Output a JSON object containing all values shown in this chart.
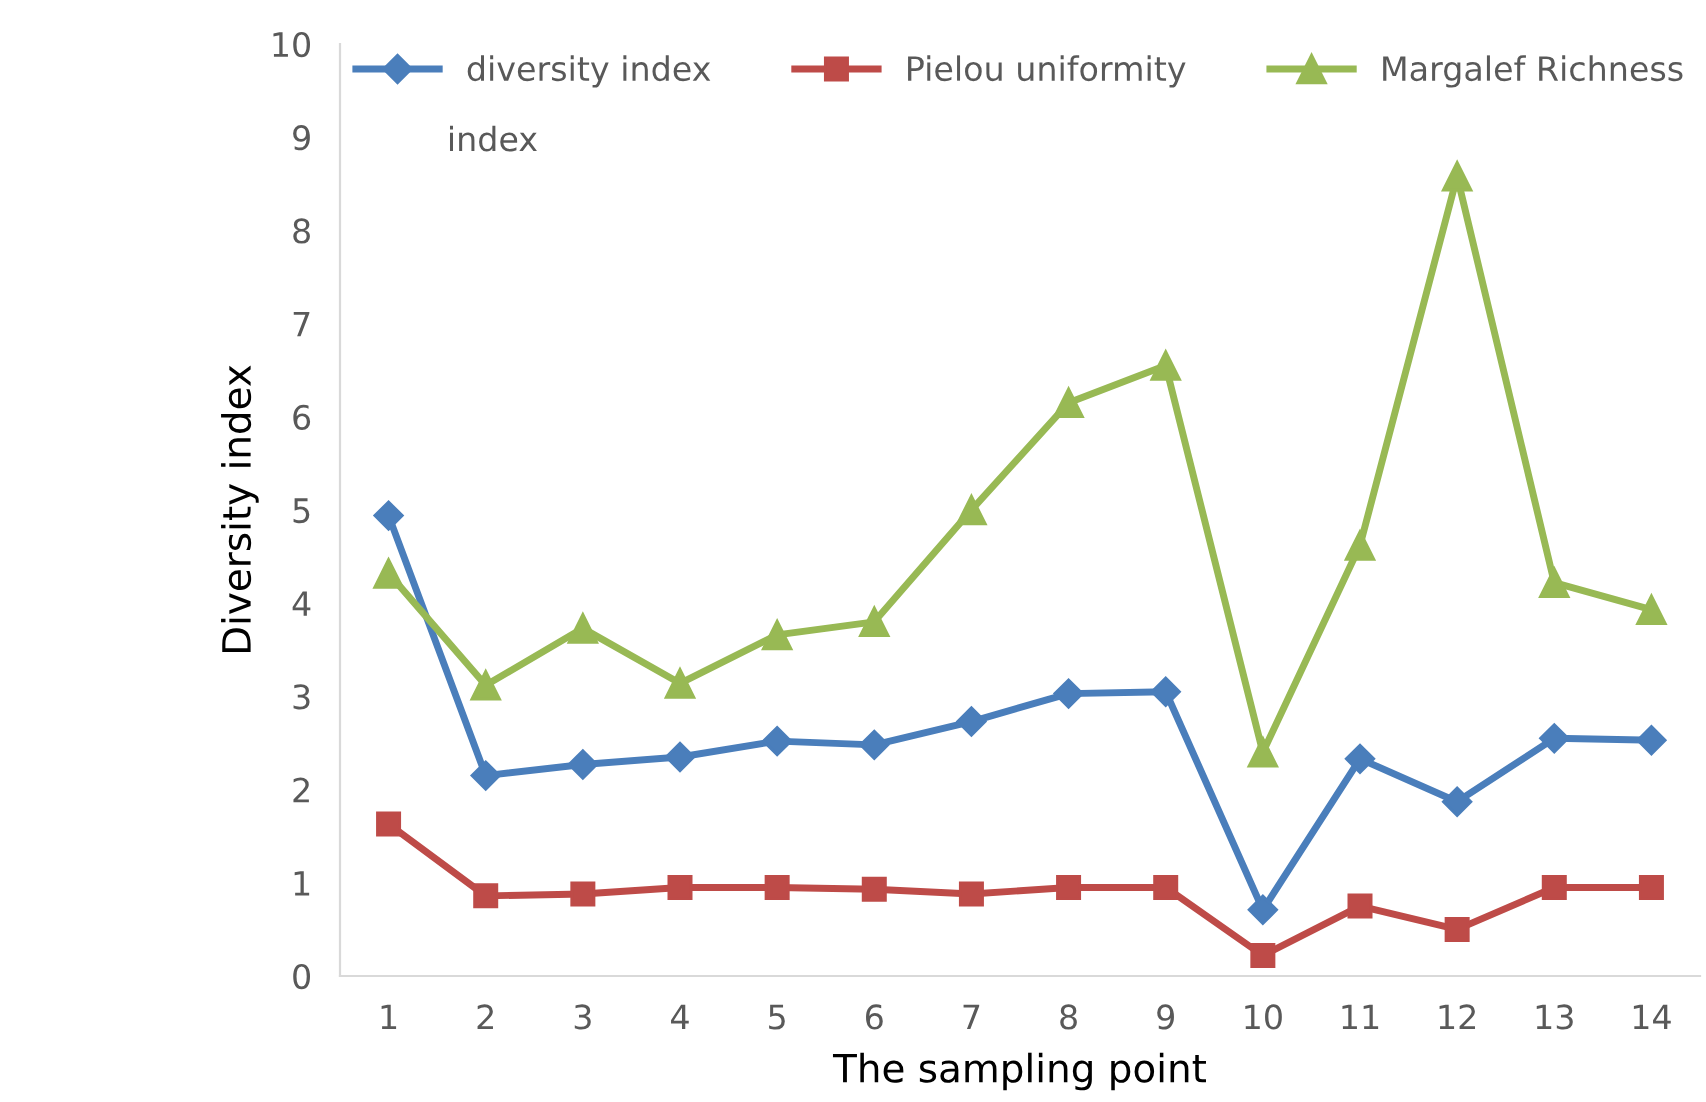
{
  "chart_data": {
    "type": "line",
    "xlabel": "The sampling point",
    "ylabel": "Diversity index",
    "categories": [
      "1",
      "2",
      "3",
      "4",
      "5",
      "6",
      "7",
      "8",
      "9",
      "10",
      "11",
      "12",
      "13",
      "14"
    ],
    "series": [
      {
        "name": "diversity index",
        "color": "#4a7ebb",
        "marker": "diamond",
        "values": [
          4.94,
          2.15,
          2.27,
          2.35,
          2.52,
          2.48,
          2.73,
          3.03,
          3.05,
          0.71,
          2.33,
          1.87,
          2.55,
          2.53
        ]
      },
      {
        "name": "Pielou uniformity",
        "color": "#be4b48",
        "marker": "square",
        "values": [
          1.63,
          0.86,
          0.88,
          0.95,
          0.95,
          0.93,
          0.88,
          0.95,
          0.95,
          0.22,
          0.75,
          0.5,
          0.95,
          0.95
        ]
      },
      {
        "name": "Margalef Richness",
        "color": "#98b954",
        "marker": "triangle",
        "values": [
          4.32,
          3.12,
          3.73,
          3.14,
          3.66,
          3.8,
          5.0,
          6.15,
          6.55,
          2.4,
          4.62,
          8.58,
          4.22,
          3.93
        ]
      }
    ],
    "ylim": [
      0,
      10
    ],
    "yticks": [
      0,
      1,
      2,
      3,
      4,
      5,
      6,
      7,
      8,
      9,
      10
    ],
    "grid": false,
    "legend": "top",
    "line_style": "solid",
    "annotations": [
      "index"
    ]
  }
}
